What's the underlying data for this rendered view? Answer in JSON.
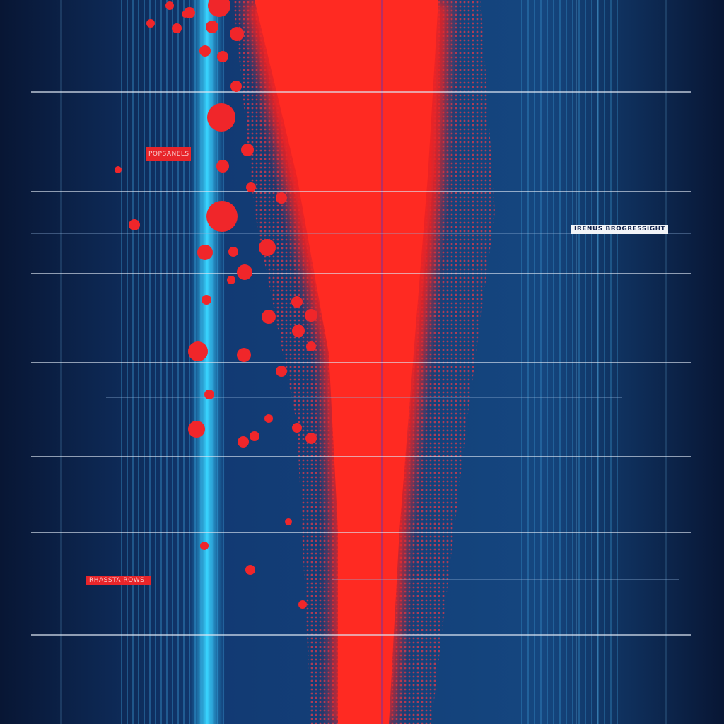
{
  "labels": {
    "left_top": "POPSANELS",
    "right": "IRENUS BROGRESSIGHT",
    "left_bottom": "RHASSTA ROWS"
  }
}
